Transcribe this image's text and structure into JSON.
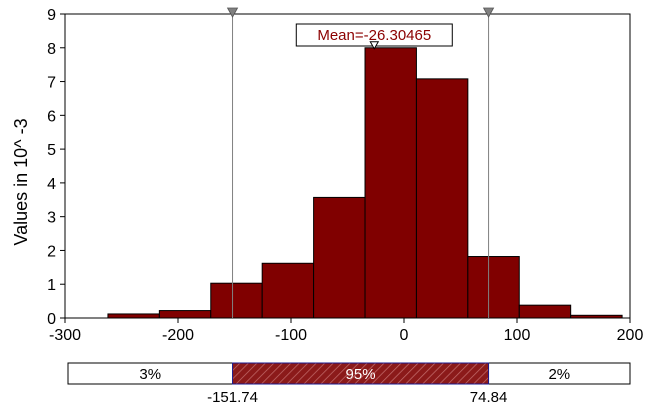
{
  "chart_data": {
    "type": "bar",
    "subtype": "histogram",
    "ylabel": "Values in 10^ -3",
    "xlim": [
      -300,
      200
    ],
    "ylim": [
      0,
      9
    ],
    "x_ticks": [
      -300,
      -200,
      -100,
      0,
      100,
      200
    ],
    "y_ticks": [
      0,
      1,
      2,
      3,
      4,
      5,
      6,
      7,
      8,
      9
    ],
    "bins": [
      {
        "x0": -262.0,
        "x1": -216.5,
        "value": 0.12
      },
      {
        "x0": -216.5,
        "x1": -171.0,
        "value": 0.22
      },
      {
        "x0": -171.0,
        "x1": -125.5,
        "value": 1.03
      },
      {
        "x0": -125.5,
        "x1": -80.0,
        "value": 1.62
      },
      {
        "x0": -80.0,
        "x1": -34.5,
        "value": 3.57
      },
      {
        "x0": -34.5,
        "x1": 11.0,
        "value": 8.0
      },
      {
        "x0": 11.0,
        "x1": 56.5,
        "value": 7.08
      },
      {
        "x0": 56.5,
        "x1": 102.0,
        "value": 1.82
      },
      {
        "x0": 102.0,
        "x1": 147.5,
        "value": 0.38
      },
      {
        "x0": 147.5,
        "x1": 193.0,
        "value": 0.08
      }
    ],
    "mean": -26.30465,
    "mean_label": "Mean=-26.30465",
    "bounds": {
      "lower": -151.74,
      "upper": 74.84,
      "lower_label": "-151.74",
      "upper_label": "74.84"
    },
    "percent_bar": {
      "left": "3%",
      "center": "95%",
      "right": "2%"
    },
    "grid": false,
    "colors": {
      "bar_fill": "#800000",
      "bar_stroke": "#000000",
      "mean_text": "#8b0000",
      "marker": "#808080",
      "hatch_band": "#7a1010"
    }
  }
}
